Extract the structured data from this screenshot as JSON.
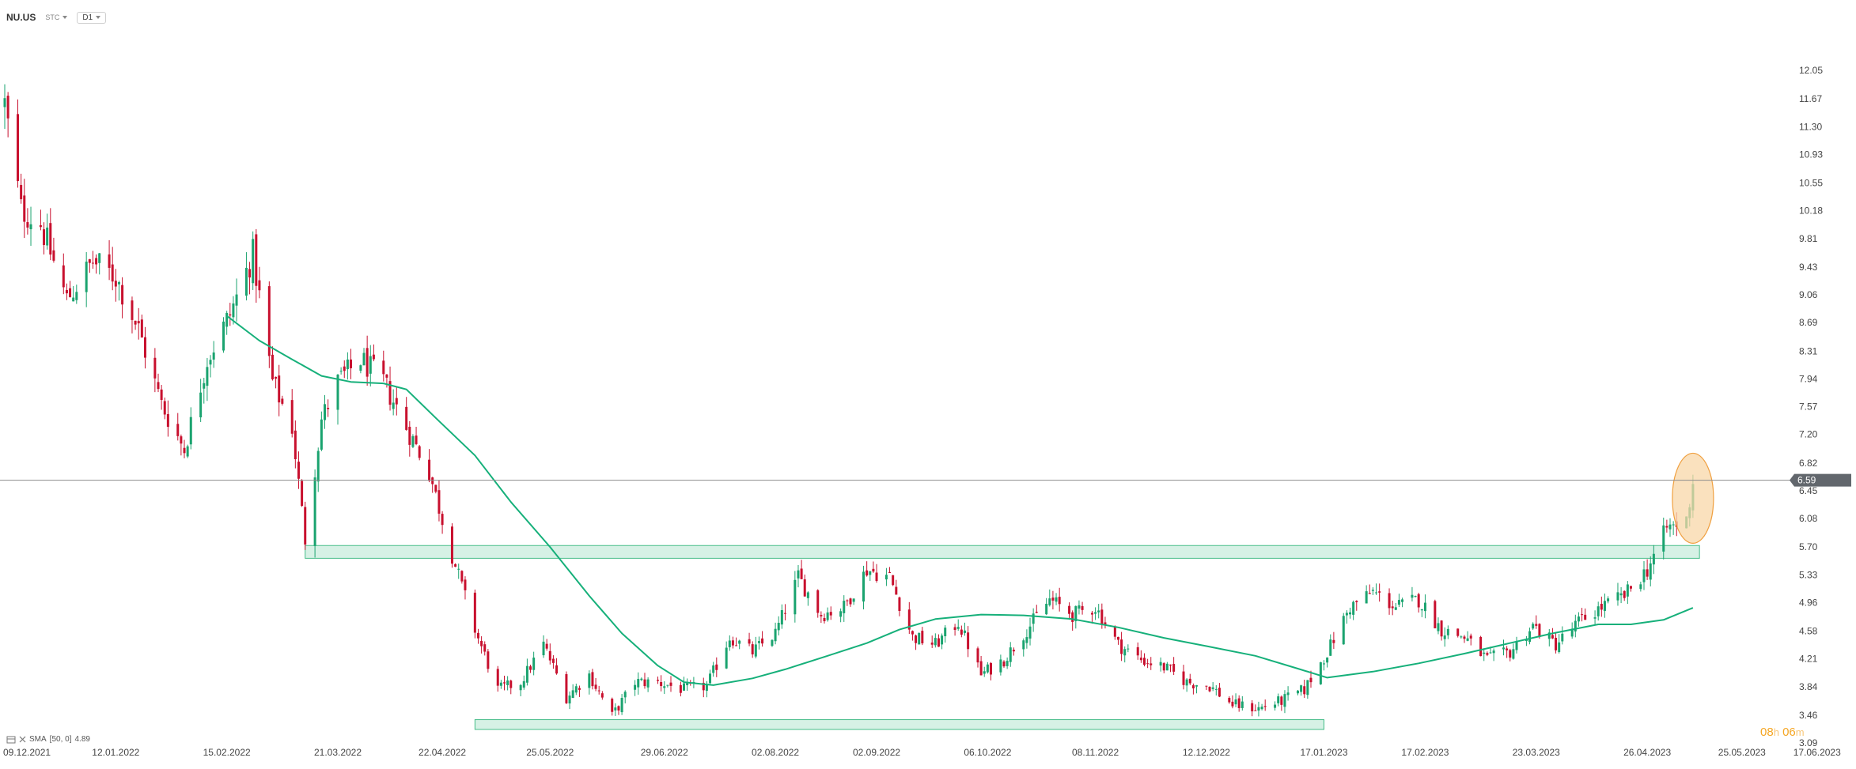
{
  "header": {
    "symbol": "NU.US",
    "instrument_type": "STC",
    "timeframe": "D1"
  },
  "indicator_legend": {
    "name": "SMA",
    "params": "[50, 0]",
    "value": "4.89"
  },
  "countdown": {
    "hours": "08",
    "h_unit": "h",
    "minutes": "06",
    "m_unit": "m"
  },
  "colors": {
    "up": "#1aa36f",
    "down": "#c8102e",
    "sma": "#16b07a",
    "zone_fill": "#d4f1e4",
    "zone_stroke": "#3cb982",
    "price_line": "#8c8c8c",
    "price_badge": "#62676d",
    "highlight_fill": "#f8d7a8",
    "highlight_stroke": "#f0a040"
  },
  "chart_data": {
    "type": "candlestick",
    "instrument": "NU.US",
    "timeframe": "D1",
    "current_price": 6.59,
    "price_axis": {
      "min": 3.09,
      "max": 12.42,
      "ticks": [
        "12.05",
        "11.67",
        "11.30",
        "10.93",
        "10.55",
        "10.18",
        "9.81",
        "9.43",
        "9.06",
        "8.69",
        "8.31",
        "7.94",
        "7.57",
        "7.20",
        "6.82",
        "6.45",
        "6.08",
        "5.70",
        "5.33",
        "4.96",
        "4.58",
        "4.21",
        "3.84",
        "3.46",
        "3.09"
      ]
    },
    "time_axis": {
      "start": "2021-12-09",
      "end": "2023-06-19",
      "ticks": [
        "09.12.2021",
        "12.01.2022",
        "15.02.2022",
        "21.03.2022",
        "22.04.2022",
        "25.05.2022",
        "29.06.2022",
        "02.08.2022",
        "02.09.2022",
        "06.10.2022",
        "08.11.2022",
        "12.12.2022",
        "17.01.2023",
        "17.02.2023",
        "23.03.2023",
        "26.04.2023",
        "25.05.2023",
        "17.06.2023"
      ]
    },
    "candle_anchors": [
      [
        "2021-12-09",
        11.6
      ],
      [
        "2021-12-14",
        10.2
      ],
      [
        "2021-12-20",
        10.0
      ],
      [
        "2021-12-28",
        9.0
      ],
      [
        "2022-01-05",
        9.5
      ],
      [
        "2022-01-12",
        9.3
      ],
      [
        "2022-01-19",
        8.6
      ],
      [
        "2022-01-26",
        7.6
      ],
      [
        "2022-02-02",
        7.0
      ],
      [
        "2022-02-09",
        8.2
      ],
      [
        "2022-02-16",
        8.8
      ],
      [
        "2022-02-23",
        9.6
      ],
      [
        "2022-03-01",
        7.9
      ],
      [
        "2022-03-07",
        7.3
      ],
      [
        "2022-03-11",
        5.8
      ],
      [
        "2022-03-16",
        7.4
      ],
      [
        "2022-03-21",
        7.9
      ],
      [
        "2022-03-28",
        8.2
      ],
      [
        "2022-04-04",
        7.9
      ],
      [
        "2022-04-11",
        7.3
      ],
      [
        "2022-04-18",
        6.7
      ],
      [
        "2022-04-25",
        5.6
      ],
      [
        "2022-05-02",
        4.6
      ],
      [
        "2022-05-09",
        3.8
      ],
      [
        "2022-05-16",
        3.9
      ],
      [
        "2022-05-23",
        4.4
      ],
      [
        "2022-05-30",
        3.7
      ],
      [
        "2022-06-06",
        4.0
      ],
      [
        "2022-06-13",
        3.45
      ],
      [
        "2022-06-20",
        3.9
      ],
      [
        "2022-06-27",
        3.9
      ],
      [
        "2022-07-05",
        3.8
      ],
      [
        "2022-07-12",
        3.85
      ],
      [
        "2022-07-19",
        4.5
      ],
      [
        "2022-07-26",
        4.3
      ],
      [
        "2022-08-02",
        4.55
      ],
      [
        "2022-08-09",
        5.3
      ],
      [
        "2022-08-16",
        4.8
      ],
      [
        "2022-08-23",
        4.9
      ],
      [
        "2022-08-30",
        5.4
      ],
      [
        "2022-09-06",
        5.3
      ],
      [
        "2022-09-13",
        4.5
      ],
      [
        "2022-09-20",
        4.4
      ],
      [
        "2022-09-27",
        4.7
      ],
      [
        "2022-10-04",
        4.0
      ],
      [
        "2022-10-11",
        4.2
      ],
      [
        "2022-10-18",
        4.6
      ],
      [
        "2022-10-25",
        5.0
      ],
      [
        "2022-11-01",
        4.8
      ],
      [
        "2022-11-08",
        4.9
      ],
      [
        "2022-11-15",
        4.4
      ],
      [
        "2022-11-22",
        4.2
      ],
      [
        "2022-11-29",
        4.1
      ],
      [
        "2022-12-06",
        3.9
      ],
      [
        "2022-12-13",
        3.85
      ],
      [
        "2022-12-20",
        3.6
      ],
      [
        "2022-12-28",
        3.55
      ],
      [
        "2023-01-04",
        3.65
      ],
      [
        "2023-01-11",
        3.8
      ],
      [
        "2023-01-18",
        4.3
      ],
      [
        "2023-01-25",
        4.9
      ],
      [
        "2023-02-01",
        5.1
      ],
      [
        "2023-02-08",
        4.9
      ],
      [
        "2023-02-15",
        5.0
      ],
      [
        "2023-02-22",
        4.6
      ],
      [
        "2023-03-01",
        4.5
      ],
      [
        "2023-03-08",
        4.2
      ],
      [
        "2023-03-15",
        4.3
      ],
      [
        "2023-03-22",
        4.65
      ],
      [
        "2023-03-29",
        4.4
      ],
      [
        "2023-04-05",
        4.7
      ],
      [
        "2023-04-12",
        4.9
      ],
      [
        "2023-04-19",
        5.05
      ],
      [
        "2023-04-26",
        5.4
      ],
      [
        "2023-05-02",
        5.95
      ],
      [
        "2023-05-08",
        6.05
      ],
      [
        "2023-05-10",
        6.59
      ]
    ],
    "sma_50": [
      [
        "2022-02-15",
        8.78
      ],
      [
        "2022-02-25",
        8.45
      ],
      [
        "2022-03-07",
        8.2
      ],
      [
        "2022-03-16",
        7.98
      ],
      [
        "2022-03-25",
        7.9
      ],
      [
        "2022-04-04",
        7.88
      ],
      [
        "2022-04-11",
        7.8
      ],
      [
        "2022-04-20",
        7.42
      ],
      [
        "2022-05-02",
        6.92
      ],
      [
        "2022-05-13",
        6.3
      ],
      [
        "2022-05-25",
        5.7
      ],
      [
        "2022-06-06",
        5.05
      ],
      [
        "2022-06-16",
        4.55
      ],
      [
        "2022-06-27",
        4.12
      ],
      [
        "2022-07-05",
        3.9
      ],
      [
        "2022-07-14",
        3.86
      ],
      [
        "2022-07-26",
        3.95
      ],
      [
        "2022-08-05",
        4.07
      ],
      [
        "2022-08-18",
        4.25
      ],
      [
        "2022-08-30",
        4.42
      ],
      [
        "2022-09-09",
        4.6
      ],
      [
        "2022-09-20",
        4.74
      ],
      [
        "2022-10-04",
        4.8
      ],
      [
        "2022-10-17",
        4.79
      ],
      [
        "2022-11-01",
        4.74
      ],
      [
        "2022-11-15",
        4.63
      ],
      [
        "2022-11-29",
        4.49
      ],
      [
        "2022-12-12",
        4.38
      ],
      [
        "2022-12-27",
        4.25
      ],
      [
        "2023-01-09",
        4.08
      ],
      [
        "2023-01-18",
        3.96
      ],
      [
        "2023-02-01",
        4.04
      ],
      [
        "2023-02-15",
        4.15
      ],
      [
        "2023-03-01",
        4.28
      ],
      [
        "2023-03-14",
        4.41
      ],
      [
        "2023-03-28",
        4.55
      ],
      [
        "2023-04-11",
        4.67
      ],
      [
        "2023-04-21",
        4.67
      ],
      [
        "2023-05-01",
        4.73
      ],
      [
        "2023-05-10",
        4.89
      ]
    ],
    "support_zones": [
      {
        "from": "2022-03-11",
        "to": "2023-05-12",
        "low": 5.55,
        "high": 5.72
      },
      {
        "from": "2022-05-02",
        "to": "2023-01-17",
        "low": 3.27,
        "high": 3.4
      }
    ],
    "highlight": {
      "date": "2023-05-10",
      "low": 5.75,
      "high": 6.95
    },
    "grid": false
  }
}
